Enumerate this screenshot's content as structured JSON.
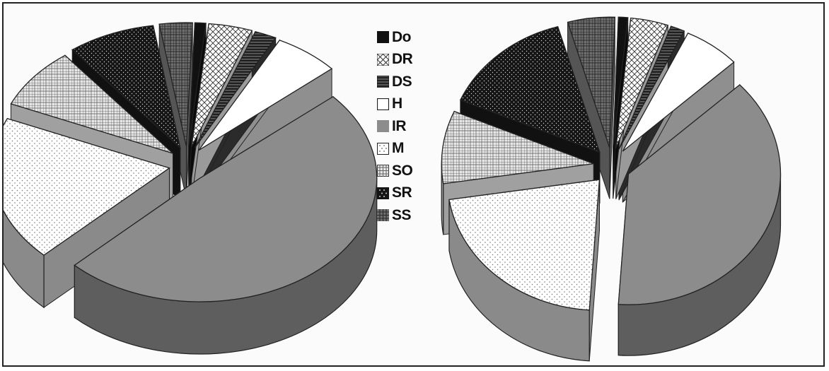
{
  "chart_data": [
    {
      "type": "pie",
      "style": "3d-exploded",
      "categories": [
        "Do",
        "DR",
        "DS",
        "H",
        "IR",
        "M",
        "SO",
        "SR",
        "SS"
      ],
      "values": [
        1.0,
        4.0,
        2.0,
        6.0,
        49.0,
        19.0,
        8.0,
        8.0,
        3.0
      ],
      "unit": "%"
    },
    {
      "type": "pie",
      "style": "3d-exploded",
      "categories": [
        "Do",
        "DR",
        "DS",
        "H",
        "IR",
        "M",
        "SO",
        "SR",
        "SS"
      ],
      "values": [
        1.0,
        4.0,
        1.5,
        6.0,
        38.0,
        21.5,
        9.0,
        14.0,
        5.0
      ],
      "unit": "%"
    }
  ],
  "legend": {
    "position": "center",
    "items": [
      {
        "label": "Do",
        "pattern": "solid-black"
      },
      {
        "label": "DR",
        "pattern": "diagonal-cross"
      },
      {
        "label": "DS",
        "pattern": "horizontal-stripes-dark"
      },
      {
        "label": "H",
        "pattern": "white"
      },
      {
        "label": "IR",
        "pattern": "solid-gray"
      },
      {
        "label": "M",
        "pattern": "light-dots"
      },
      {
        "label": "SO",
        "pattern": "grid-light"
      },
      {
        "label": "SR",
        "pattern": "dark-dots"
      },
      {
        "label": "SS",
        "pattern": "grid-dark"
      }
    ]
  },
  "colors": {
    "Do": "#111111",
    "DR": "#ffffff",
    "DS": "#444444",
    "H": "#ffffff",
    "IR": "#8c8c8c",
    "M": "#ffffff",
    "SO": "#cfcfcf",
    "SR": "#1a1a1a",
    "SS": "#777777",
    "outline": "#222222"
  }
}
